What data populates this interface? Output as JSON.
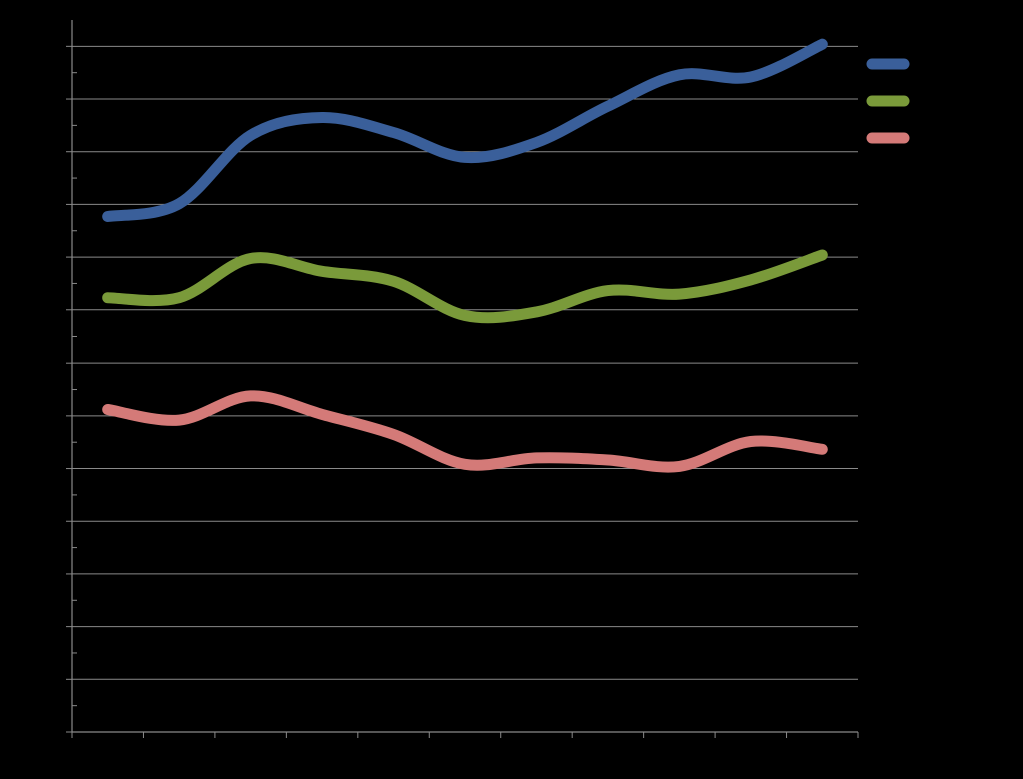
{
  "chart_data": {
    "type": "line",
    "title": "",
    "xlabel": "",
    "ylabel": "",
    "x": [
      0,
      1,
      2,
      3,
      4,
      5,
      6,
      7,
      8,
      9,
      10
    ],
    "xlim": [
      -0.5,
      10.5
    ],
    "ylim": [
      0,
      100
    ],
    "y_gridlines": [
      0,
      7.4,
      14.8,
      22.2,
      29.6,
      37.0,
      44.4,
      51.8,
      59.3,
      66.7,
      74.1,
      81.5,
      88.9,
      96.3
    ],
    "grid": true,
    "legend_position": "right",
    "series": [
      {
        "values": [
          72.4,
          74.2,
          83.8,
          86.3,
          84.2,
          80.7,
          82.8,
          87.9,
          92.3,
          92.0,
          96.6
        ],
        "color": "#3a5f9a"
      },
      {
        "values": [
          61.0,
          61.0,
          66.5,
          64.7,
          63.3,
          58.5,
          59.0,
          62.0,
          61.5,
          63.5,
          67.0
        ],
        "color": "#7a9a3a"
      },
      {
        "values": [
          45.3,
          43.8,
          47.2,
          44.6,
          41.8,
          37.6,
          38.5,
          38.2,
          37.3,
          40.8,
          39.7
        ],
        "color": "#d47a78"
      }
    ]
  }
}
